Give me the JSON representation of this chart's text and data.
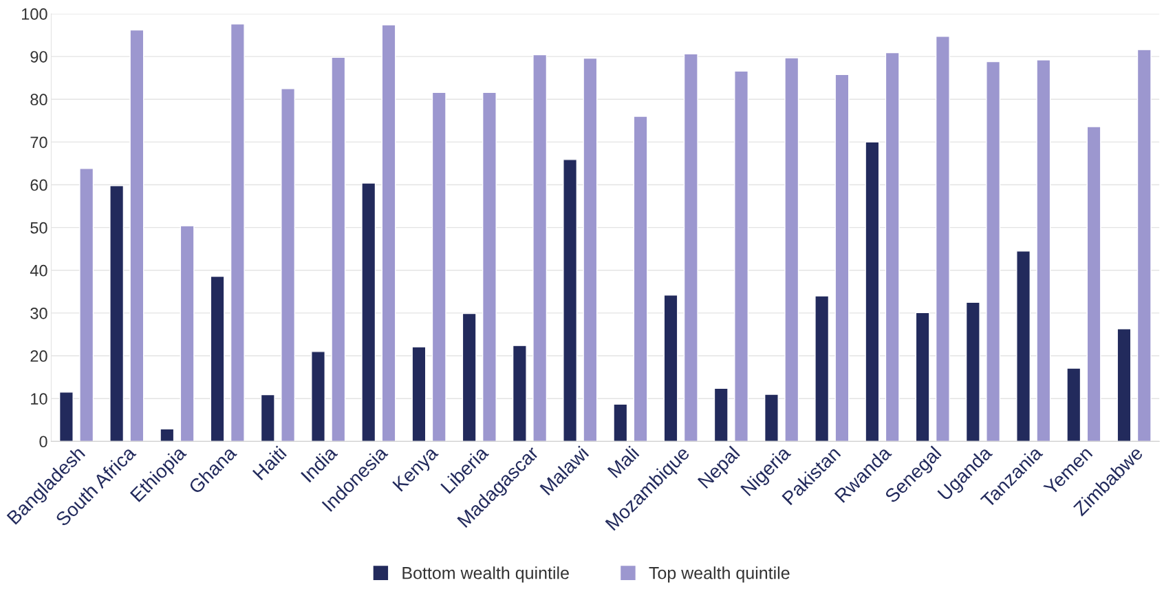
{
  "chart_data": {
    "type": "bar",
    "categories": [
      "Bangladesh",
      "South Africa",
      "Ethiopia",
      "Ghana",
      "Haiti",
      "India",
      "Indonesia",
      "Kenya",
      "Liberia",
      "Madagascar",
      "Malawi",
      "Mali",
      "Mozambique",
      "Nepal",
      "Nigeria",
      "Pakistan",
      "Rwanda",
      "Senegal",
      "Uganda",
      "Tanzania",
      "Yemen",
      "Zimbabwe"
    ],
    "series": [
      {
        "name": "Bottom wealth quintile",
        "color": "#222a5c",
        "values": [
          11.5,
          59.8,
          2.9,
          38.6,
          10.9,
          21,
          60.4,
          22.1,
          29.9,
          22.4,
          65.9,
          8.7,
          34.2,
          12.4,
          11,
          34,
          70,
          30.1,
          32.5,
          44.5,
          17.1,
          26.3
        ]
      },
      {
        "name": "Top wealth quintile",
        "color": "#9c97cf",
        "values": [
          63.8,
          96.2,
          50.4,
          97.6,
          82.5,
          89.8,
          97.4,
          81.6,
          81.6,
          90.4,
          89.6,
          76,
          90.6,
          86.6,
          89.7,
          85.8,
          90.9,
          94.7,
          88.8,
          89.2,
          73.6,
          91.6
        ]
      }
    ],
    "ylim": [
      0,
      100
    ],
    "yticks": [
      0,
      10,
      20,
      30,
      40,
      50,
      60,
      70,
      80,
      90,
      100
    ],
    "grid": "y",
    "legend": "bottom"
  }
}
